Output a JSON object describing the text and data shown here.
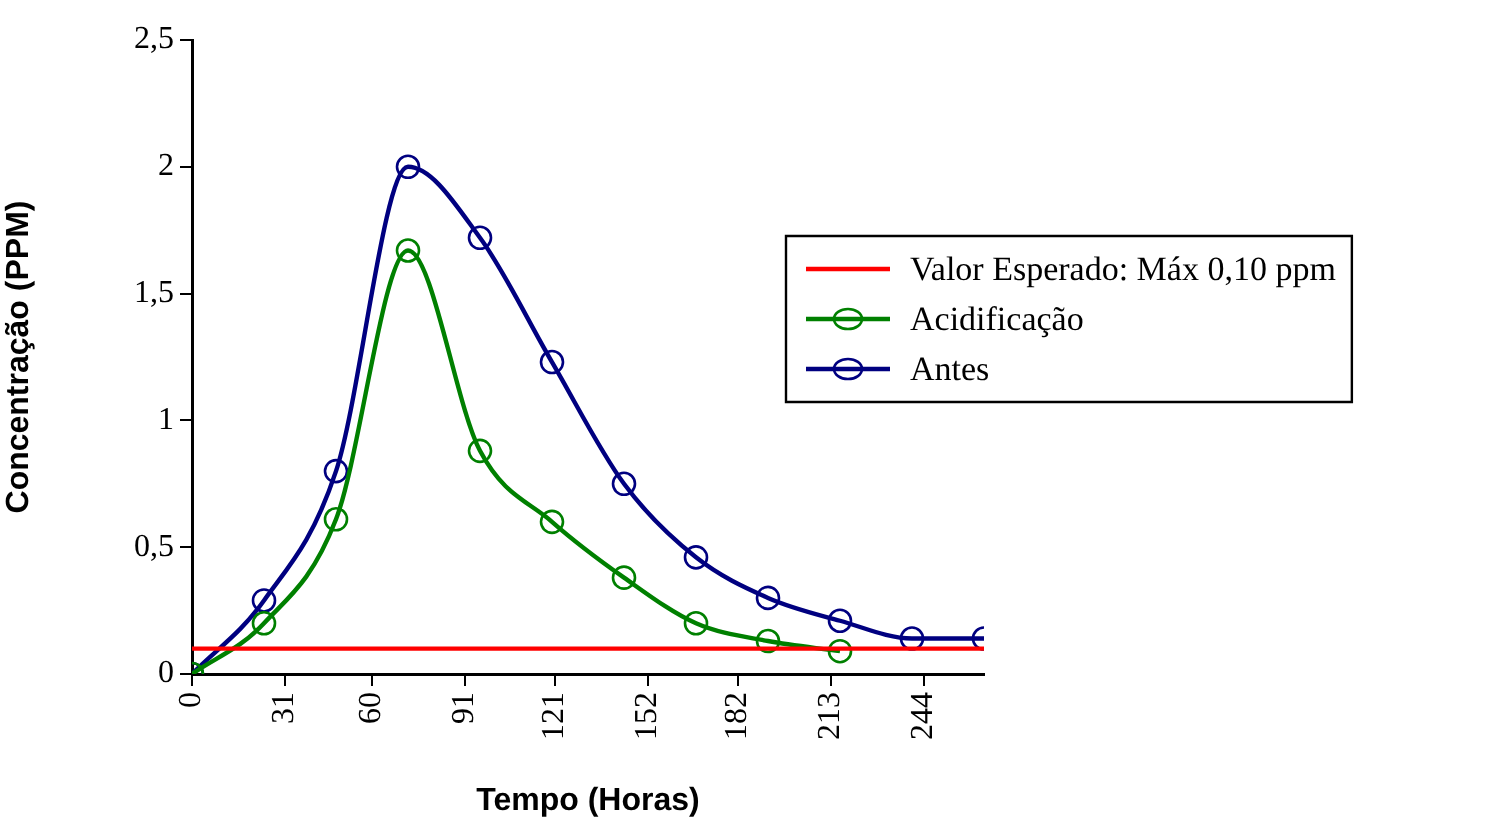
{
  "chart_data": {
    "type": "line",
    "xlabel": "Tempo (Horas)",
    "ylabel": "Concentração (PPM)",
    "xlim": [
      0,
      264
    ],
    "xticks": [
      0,
      31,
      60,
      91,
      121,
      152,
      182,
      213,
      244
    ],
    "ylim": [
      0,
      2.5
    ],
    "yticks": [
      0,
      {
        "value": 0.5,
        "label": "0,5"
      },
      1,
      {
        "value": 1.5,
        "label": "1,5"
      },
      2,
      {
        "value": 2.5,
        "label": "2,5"
      }
    ],
    "grid": false,
    "legend": "right",
    "marker": "circle",
    "line_style": "solid",
    "series": [
      {
        "name": "Valor Esperado: Máx 0,10 ppm",
        "color": "#ff0000",
        "marker": "none",
        "x": [
          0,
          264
        ],
        "values": [
          0.1,
          0.1
        ]
      },
      {
        "name": "Acidificação",
        "color": "#008000",
        "x": [
          0,
          24,
          48,
          72,
          96,
          120,
          144,
          168,
          192,
          216
        ],
        "values": [
          0,
          0.2,
          0.61,
          1.67,
          0.88,
          0.6,
          0.38,
          0.2,
          0.13,
          0.09
        ]
      },
      {
        "name": "Antes",
        "color": "#000080",
        "x": [
          0,
          24,
          48,
          72,
          96,
          120,
          144,
          168,
          192,
          216,
          240,
          264
        ],
        "values": [
          0,
          0.29,
          0.8,
          2.0,
          1.72,
          1.23,
          0.75,
          0.46,
          0.3,
          0.21,
          0.14,
          0.14
        ]
      }
    ]
  }
}
